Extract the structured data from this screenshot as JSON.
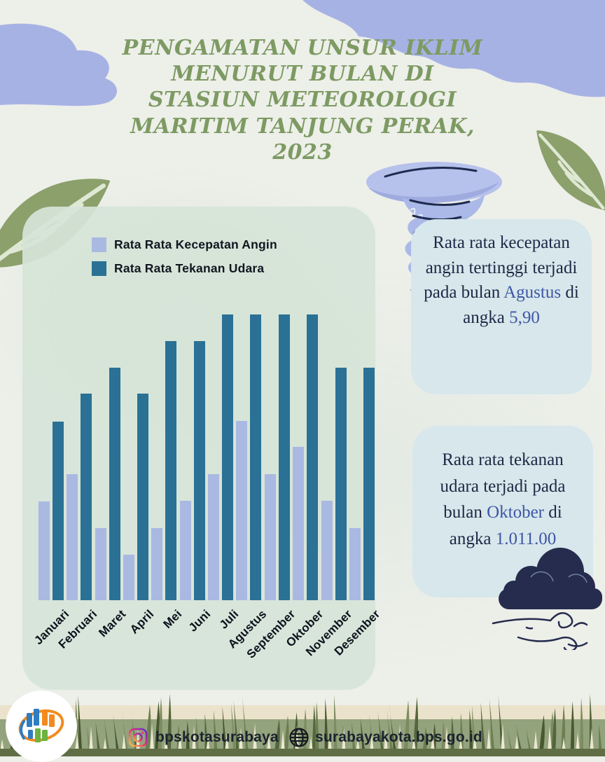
{
  "title": {
    "lines": [
      "PENGAMATAN UNSUR IKLIM",
      "MENURUT BULAN DI",
      "STASIUN METEOROLOGI",
      "MARITIM TANJUNG PERAK,",
      "2023"
    ]
  },
  "legend": {
    "items": [
      {
        "label": "Rata Rata Kecepatan Angin",
        "color": "#aab9e2"
      },
      {
        "label": "Rata Rata Tekanan Udara",
        "color": "#2a7195"
      }
    ]
  },
  "chart_data": {
    "type": "bar",
    "title": "Pengamatan Unsur Iklim Menurut Bulan di Stasiun Meteorologi Maritim Tanjung Perak, 2023",
    "categories": [
      "Januari",
      "Februari",
      "Maret",
      "April",
      "Mei",
      "Juni",
      "Juli",
      "Agustus",
      "September",
      "Oktober",
      "November",
      "Desember"
    ],
    "series": [
      {
        "name": "Rata Rata Kecepatan Angin",
        "color": "#aab9e2",
        "heights_pct": [
          34.6,
          44.1,
          25.2,
          15.9,
          25.2,
          34.8,
          44.1,
          62.7,
          44.1,
          53.7,
          34.8,
          25.2
        ],
        "est_values": [
          3.3,
          4.2,
          2.4,
          1.5,
          2.4,
          3.3,
          4.2,
          5.9,
          4.2,
          5.1,
          3.3,
          2.4
        ]
      },
      {
        "name": "Rata Rata Tekanan Udara",
        "color": "#2a7195",
        "heights_pct": [
          62.5,
          72.2,
          81.4,
          72.2,
          90.7,
          90.7,
          100,
          100,
          100,
          100,
          81.4,
          81.4
        ]
      }
    ],
    "annotations": [
      {
        "series": "Rata Rata Kecepatan Angin",
        "month": "Agustus",
        "value": "5,90",
        "note": "tertinggi"
      },
      {
        "series": "Rata Rata Tekanan Udara",
        "month": "Oktober",
        "value": "1.011.00",
        "note": "tertinggi"
      }
    ],
    "axes": {
      "y_axis": false,
      "gridlines": false,
      "x_tick_rotation": -45
    },
    "legend_position": "top-left"
  },
  "cards": {
    "wind": {
      "text_before": "Rata rata kecepatan angin tertinggi terjadi pada bulan ",
      "month": "Agustus",
      "text_middle": " di angka ",
      "value": "5,90"
    },
    "pressure": {
      "text_before": "Rata rata tekanan udara terjadi pada bulan ",
      "month": "Oktober",
      "text_middle": " di angka ",
      "value": "1.011.00"
    }
  },
  "footer": {
    "instagram_handle": "bpskotasurabaya",
    "website": "surabayakota.bps.go.id"
  },
  "colors": {
    "title_green": "#7d9a62",
    "bar_wind": "#aab9e2",
    "bar_pressure": "#2a7195",
    "panel_mint": "#d6e4d8",
    "card_bg": "#d7e7eb",
    "card_text": "#1e2746",
    "highlight_blue": "#3e56a6",
    "periwinkle": "#a7b2e4",
    "cloud_navy": "#252c4e",
    "leaf_green": "#8ba06b"
  }
}
